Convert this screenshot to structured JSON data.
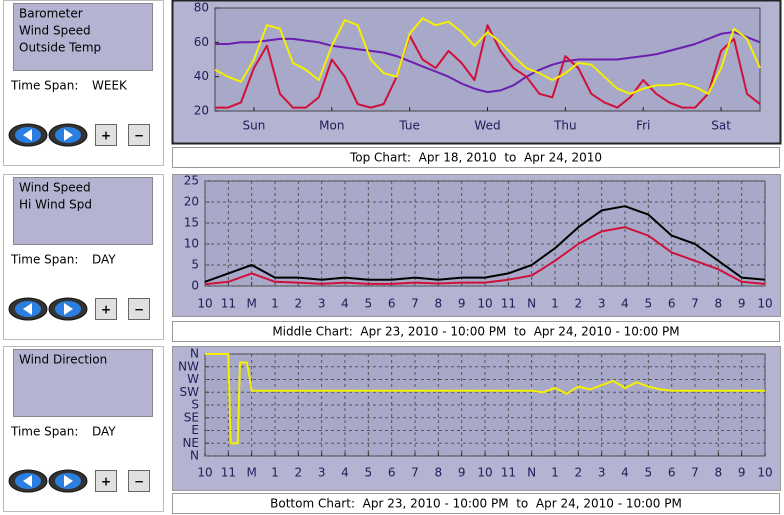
{
  "panels": [
    {
      "time_span_label": "Time Span:",
      "time_span": "WEEK",
      "zoom_in": "+",
      "zoom_out": "−"
    },
    {
      "time_span_label": "Time Span:",
      "time_span": "DAY",
      "zoom_in": "+",
      "zoom_out": "−"
    },
    {
      "time_span_label": "Time Span:",
      "time_span": "DAY",
      "zoom_in": "+",
      "zoom_out": "−"
    }
  ],
  "chart_data": [
    {
      "type": "line",
      "title": "Top Chart:  Apr 18, 2010  to  Apr 24, 2010",
      "x": [
        0,
        4,
        8,
        12,
        16,
        20,
        24,
        28,
        32,
        36,
        40,
        44,
        48,
        52,
        56,
        60,
        64,
        68,
        72,
        76,
        80,
        84,
        88,
        92,
        96,
        100,
        104,
        108,
        112,
        116,
        120,
        124,
        128,
        132,
        136,
        140,
        144,
        148,
        152,
        156,
        160,
        164,
        168
      ],
      "series": [
        {
          "name": "Barometer",
          "color": "#6a1fb0",
          "values": [
            59,
            59,
            60,
            60,
            61,
            62,
            62,
            61,
            60,
            58,
            57,
            56,
            55,
            54,
            52,
            49,
            46,
            43,
            40,
            36,
            33,
            31,
            32,
            35,
            40,
            44,
            47,
            49,
            50,
            50,
            50,
            50,
            51,
            52,
            53,
            55,
            57,
            59,
            62,
            65,
            66,
            63,
            60
          ]
        },
        {
          "name": "Wind Speed",
          "color": "#d0103a",
          "values": [
            22,
            22,
            25,
            45,
            58,
            30,
            22,
            22,
            28,
            50,
            40,
            24,
            22,
            24,
            40,
            64,
            50,
            45,
            55,
            48,
            38,
            70,
            55,
            45,
            40,
            30,
            28,
            52,
            45,
            30,
            25,
            22,
            28,
            38,
            30,
            25,
            22,
            22,
            30,
            55,
            62,
            30,
            24
          ]
        },
        {
          "name": "Outside Temp",
          "color": "#f4f000",
          "values": [
            44,
            40,
            37,
            50,
            70,
            68,
            48,
            44,
            38,
            58,
            73,
            70,
            50,
            42,
            40,
            65,
            74,
            70,
            72,
            66,
            58,
            66,
            60,
            52,
            45,
            42,
            38,
            42,
            48,
            47,
            40,
            33,
            30,
            33,
            35,
            35,
            36,
            34,
            30,
            45,
            68,
            62,
            45
          ]
        }
      ],
      "xlim": [
        0,
        168
      ],
      "xticks": [
        {
          "value": 12,
          "label": "Sun"
        },
        {
          "value": 36,
          "label": "Mon"
        },
        {
          "value": 60,
          "label": "Tue"
        },
        {
          "value": 84,
          "label": "Wed"
        },
        {
          "value": 108,
          "label": "Thu"
        },
        {
          "value": 132,
          "label": "Fri"
        },
        {
          "value": 156,
          "label": "Sat"
        }
      ],
      "ylim": [
        20,
        80
      ],
      "yticks": [
        20,
        40,
        60,
        80
      ],
      "grid": false
    },
    {
      "type": "line",
      "title": "Middle Chart:  Apr 23, 2010 - 10:00 PM  to  Apr 24, 2010 - 10:00 PM",
      "x": [
        0,
        1,
        2,
        3,
        4,
        5,
        6,
        7,
        8,
        9,
        10,
        11,
        12,
        13,
        14,
        15,
        16,
        17,
        18,
        19,
        20,
        21,
        22,
        23,
        24
      ],
      "series": [
        {
          "name": "Wind Speed",
          "color": "#d0103a",
          "values": [
            0.4,
            1,
            3,
            1,
            0.8,
            0.5,
            0.8,
            0.5,
            0.5,
            0.8,
            0.6,
            0.8,
            0.8,
            1.5,
            2.5,
            6,
            10,
            13,
            14,
            12,
            8,
            6,
            4,
            1,
            0.5
          ]
        },
        {
          "name": "Hi Wind Spd",
          "color": "#000000",
          "values": [
            1,
            3,
            5,
            2,
            2,
            1.5,
            2,
            1.5,
            1.5,
            2,
            1.5,
            2,
            2,
            3,
            5,
            9,
            14,
            18,
            19,
            17,
            12,
            10,
            6,
            2,
            1.5
          ]
        }
      ],
      "xlim": [
        0,
        24
      ],
      "xticks": [
        {
          "value": 0,
          "label": "10"
        },
        {
          "value": 1,
          "label": "11"
        },
        {
          "value": 2,
          "label": "M"
        },
        {
          "value": 3,
          "label": "1"
        },
        {
          "value": 4,
          "label": "2"
        },
        {
          "value": 5,
          "label": "3"
        },
        {
          "value": 6,
          "label": "4"
        },
        {
          "value": 7,
          "label": "5"
        },
        {
          "value": 8,
          "label": "6"
        },
        {
          "value": 9,
          "label": "7"
        },
        {
          "value": 10,
          "label": "8"
        },
        {
          "value": 11,
          "label": "9"
        },
        {
          "value": 12,
          "label": "10"
        },
        {
          "value": 13,
          "label": "11"
        },
        {
          "value": 14,
          "label": "N"
        },
        {
          "value": 15,
          "label": "1"
        },
        {
          "value": 16,
          "label": "2"
        },
        {
          "value": 17,
          "label": "3"
        },
        {
          "value": 18,
          "label": "4"
        },
        {
          "value": 19,
          "label": "5"
        },
        {
          "value": 20,
          "label": "6"
        },
        {
          "value": 21,
          "label": "7"
        },
        {
          "value": 22,
          "label": "8"
        },
        {
          "value": 23,
          "label": "9"
        },
        {
          "value": 24,
          "label": "10"
        }
      ],
      "ylim": [
        0,
        25
      ],
      "yticks": [
        0,
        5,
        10,
        15,
        20,
        25
      ],
      "grid": true
    },
    {
      "type": "line",
      "title": "Bottom Chart:  Apr 23, 2010 - 10:00 PM  to  Apr 24, 2010 - 10:00 PM",
      "x": [
        0,
        0.5,
        1,
        1.1,
        1.4,
        1.5,
        1.8,
        2,
        4,
        6,
        8,
        10,
        12,
        14,
        14.5,
        15,
        15.5,
        16,
        16.5,
        17,
        17.5,
        18,
        18.5,
        19,
        19.5,
        20,
        22,
        24
      ],
      "series": [
        {
          "name": "Wind Direction",
          "color": "#f4f000",
          "values": [
            360,
            360,
            360,
            45,
            45,
            330,
            330,
            230,
            230,
            230,
            230,
            230,
            230,
            230,
            225,
            240,
            220,
            245,
            235,
            250,
            265,
            240,
            260,
            245,
            235,
            230,
            230,
            230
          ]
        }
      ],
      "xlim": [
        0,
        24
      ],
      "xticks": [
        {
          "value": 0,
          "label": "10"
        },
        {
          "value": 1,
          "label": "11"
        },
        {
          "value": 2,
          "label": "M"
        },
        {
          "value": 3,
          "label": "1"
        },
        {
          "value": 4,
          "label": "2"
        },
        {
          "value": 5,
          "label": "3"
        },
        {
          "value": 6,
          "label": "4"
        },
        {
          "value": 7,
          "label": "5"
        },
        {
          "value": 8,
          "label": "6"
        },
        {
          "value": 9,
          "label": "7"
        },
        {
          "value": 10,
          "label": "8"
        },
        {
          "value": 11,
          "label": "9"
        },
        {
          "value": 12,
          "label": "10"
        },
        {
          "value": 13,
          "label": "11"
        },
        {
          "value": 14,
          "label": "N"
        },
        {
          "value": 15,
          "label": "1"
        },
        {
          "value": 16,
          "label": "2"
        },
        {
          "value": 17,
          "label": "3"
        },
        {
          "value": 18,
          "label": "4"
        },
        {
          "value": 19,
          "label": "5"
        },
        {
          "value": 20,
          "label": "6"
        },
        {
          "value": 21,
          "label": "7"
        },
        {
          "value": 22,
          "label": "8"
        },
        {
          "value": 23,
          "label": "9"
        },
        {
          "value": 24,
          "label": "10"
        }
      ],
      "ylim": [
        0,
        360
      ],
      "yticks": [
        {
          "value": 0,
          "label": "N"
        },
        {
          "value": 45,
          "label": "NE"
        },
        {
          "value": 90,
          "label": "E"
        },
        {
          "value": 135,
          "label": "SE"
        },
        {
          "value": 180,
          "label": "S"
        },
        {
          "value": 225,
          "label": "SW"
        },
        {
          "value": 270,
          "label": "W"
        },
        {
          "value": 315,
          "label": "NW"
        },
        {
          "value": 360,
          "label": "N"
        }
      ],
      "grid": true
    }
  ]
}
